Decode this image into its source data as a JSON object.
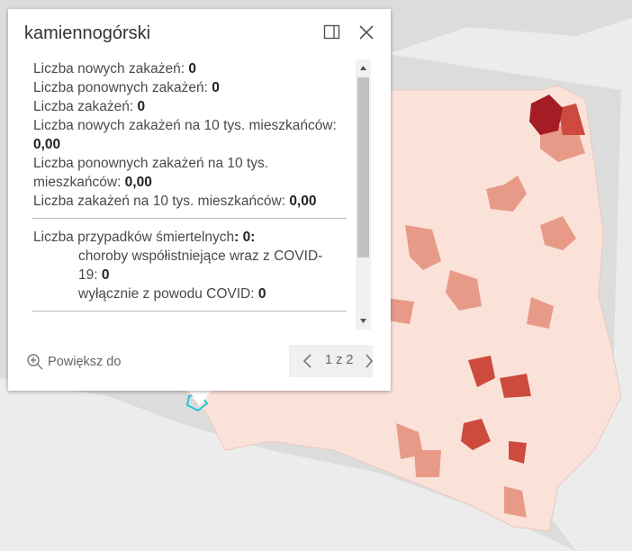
{
  "popup": {
    "title": "kamiennogórski",
    "fields": [
      {
        "label": "Liczba nowych zakażeń:",
        "value": "0"
      },
      {
        "label": "Liczba ponownych zakażeń:",
        "value": "0"
      },
      {
        "label": "Liczba zakażeń:",
        "value": "0"
      },
      {
        "label": "Liczba nowych zakażeń na 10 tys. mieszkańców:",
        "value": "0,00"
      },
      {
        "label": "Liczba ponownych zakażeń na 10 tys. mieszkańców:",
        "value": "0,00"
      },
      {
        "label": "Liczba zakażeń na 10 tys. mieszkańców:",
        "value": "0,00"
      }
    ],
    "deaths": {
      "label": "Liczba przypadków śmiertelnych",
      "value": ": 0:",
      "items": [
        {
          "label": "choroby współistniejące wraz z COVID-19:",
          "value": "0"
        },
        {
          "label": "wyłącznie z powodu COVID:",
          "value": "0"
        }
      ]
    },
    "zoom": "Powiększ do",
    "pager": "1 z 2"
  }
}
